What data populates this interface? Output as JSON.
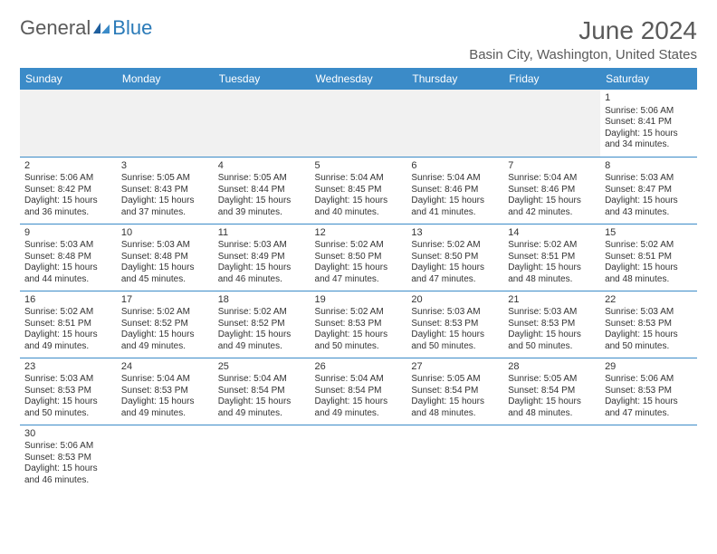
{
  "logo": {
    "part1": "General",
    "part2": "Blue"
  },
  "title": "June 2024",
  "location": "Basin City, Washington, United States",
  "colors": {
    "header_bg": "#3b8bc8",
    "header_text": "#ffffff",
    "rule": "#3b8bc8",
    "blank_bg": "#f1f1f1",
    "text": "#333333",
    "title_text": "#5a5a5a"
  },
  "day_headers": [
    "Sunday",
    "Monday",
    "Tuesday",
    "Wednesday",
    "Thursday",
    "Friday",
    "Saturday"
  ],
  "weeks": [
    [
      null,
      null,
      null,
      null,
      null,
      null,
      {
        "n": "1",
        "sr": "5:06 AM",
        "ss": "8:41 PM",
        "dl": "15 hours and 34 minutes."
      }
    ],
    [
      {
        "n": "2",
        "sr": "5:06 AM",
        "ss": "8:42 PM",
        "dl": "15 hours and 36 minutes."
      },
      {
        "n": "3",
        "sr": "5:05 AM",
        "ss": "8:43 PM",
        "dl": "15 hours and 37 minutes."
      },
      {
        "n": "4",
        "sr": "5:05 AM",
        "ss": "8:44 PM",
        "dl": "15 hours and 39 minutes."
      },
      {
        "n": "5",
        "sr": "5:04 AM",
        "ss": "8:45 PM",
        "dl": "15 hours and 40 minutes."
      },
      {
        "n": "6",
        "sr": "5:04 AM",
        "ss": "8:46 PM",
        "dl": "15 hours and 41 minutes."
      },
      {
        "n": "7",
        "sr": "5:04 AM",
        "ss": "8:46 PM",
        "dl": "15 hours and 42 minutes."
      },
      {
        "n": "8",
        "sr": "5:03 AM",
        "ss": "8:47 PM",
        "dl": "15 hours and 43 minutes."
      }
    ],
    [
      {
        "n": "9",
        "sr": "5:03 AM",
        "ss": "8:48 PM",
        "dl": "15 hours and 44 minutes."
      },
      {
        "n": "10",
        "sr": "5:03 AM",
        "ss": "8:48 PM",
        "dl": "15 hours and 45 minutes."
      },
      {
        "n": "11",
        "sr": "5:03 AM",
        "ss": "8:49 PM",
        "dl": "15 hours and 46 minutes."
      },
      {
        "n": "12",
        "sr": "5:02 AM",
        "ss": "8:50 PM",
        "dl": "15 hours and 47 minutes."
      },
      {
        "n": "13",
        "sr": "5:02 AM",
        "ss": "8:50 PM",
        "dl": "15 hours and 47 minutes."
      },
      {
        "n": "14",
        "sr": "5:02 AM",
        "ss": "8:51 PM",
        "dl": "15 hours and 48 minutes."
      },
      {
        "n": "15",
        "sr": "5:02 AM",
        "ss": "8:51 PM",
        "dl": "15 hours and 48 minutes."
      }
    ],
    [
      {
        "n": "16",
        "sr": "5:02 AM",
        "ss": "8:51 PM",
        "dl": "15 hours and 49 minutes."
      },
      {
        "n": "17",
        "sr": "5:02 AM",
        "ss": "8:52 PM",
        "dl": "15 hours and 49 minutes."
      },
      {
        "n": "18",
        "sr": "5:02 AM",
        "ss": "8:52 PM",
        "dl": "15 hours and 49 minutes."
      },
      {
        "n": "19",
        "sr": "5:02 AM",
        "ss": "8:53 PM",
        "dl": "15 hours and 50 minutes."
      },
      {
        "n": "20",
        "sr": "5:03 AM",
        "ss": "8:53 PM",
        "dl": "15 hours and 50 minutes."
      },
      {
        "n": "21",
        "sr": "5:03 AM",
        "ss": "8:53 PM",
        "dl": "15 hours and 50 minutes."
      },
      {
        "n": "22",
        "sr": "5:03 AM",
        "ss": "8:53 PM",
        "dl": "15 hours and 50 minutes."
      }
    ],
    [
      {
        "n": "23",
        "sr": "5:03 AM",
        "ss": "8:53 PM",
        "dl": "15 hours and 50 minutes."
      },
      {
        "n": "24",
        "sr": "5:04 AM",
        "ss": "8:53 PM",
        "dl": "15 hours and 49 minutes."
      },
      {
        "n": "25",
        "sr": "5:04 AM",
        "ss": "8:54 PM",
        "dl": "15 hours and 49 minutes."
      },
      {
        "n": "26",
        "sr": "5:04 AM",
        "ss": "8:54 PM",
        "dl": "15 hours and 49 minutes."
      },
      {
        "n": "27",
        "sr": "5:05 AM",
        "ss": "8:54 PM",
        "dl": "15 hours and 48 minutes."
      },
      {
        "n": "28",
        "sr": "5:05 AM",
        "ss": "8:54 PM",
        "dl": "15 hours and 48 minutes."
      },
      {
        "n": "29",
        "sr": "5:06 AM",
        "ss": "8:53 PM",
        "dl": "15 hours and 47 minutes."
      }
    ],
    [
      {
        "n": "30",
        "sr": "5:06 AM",
        "ss": "8:53 PM",
        "dl": "15 hours and 46 minutes."
      },
      null,
      null,
      null,
      null,
      null,
      null
    ]
  ],
  "labels": {
    "sunrise": "Sunrise:",
    "sunset": "Sunset:",
    "daylight": "Daylight:"
  }
}
